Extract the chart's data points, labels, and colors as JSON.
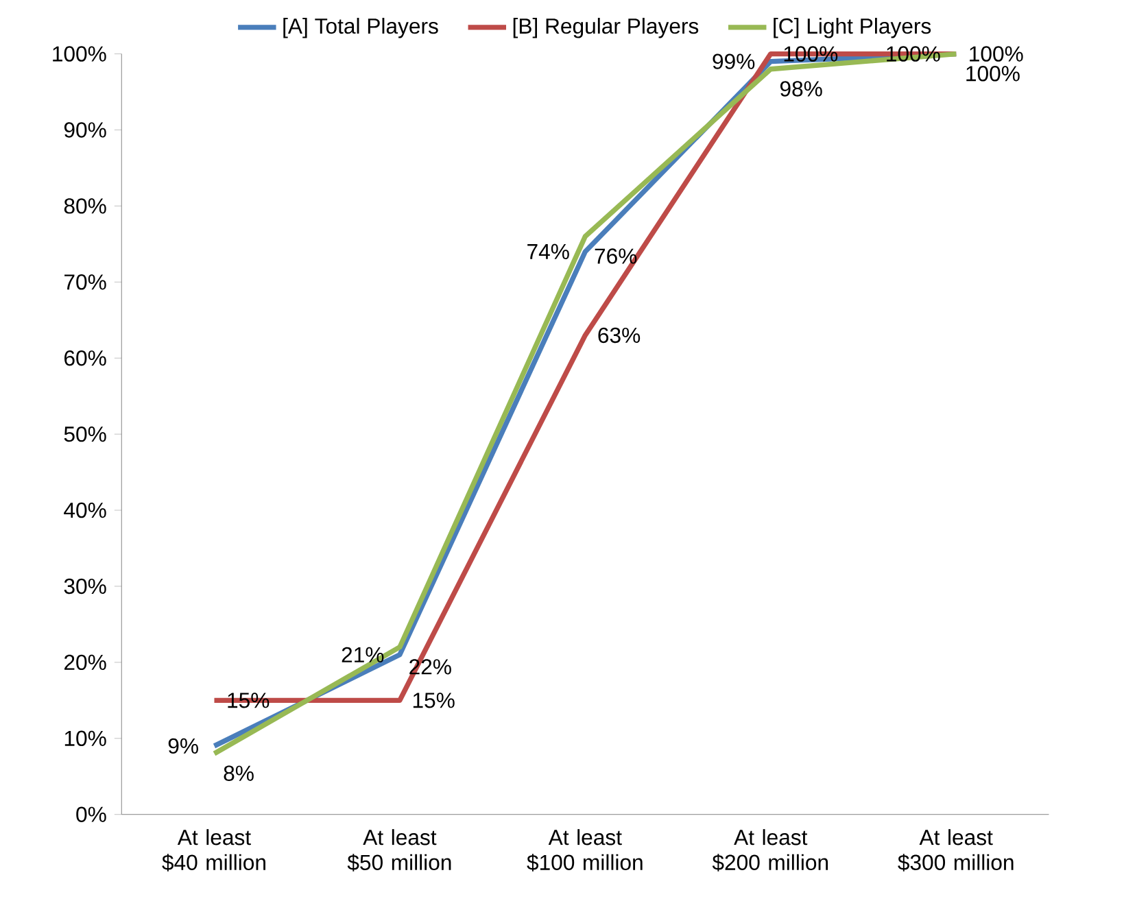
{
  "chart_data": {
    "type": "line",
    "categories": [
      "At least $40 million",
      "At least $50 million",
      "At least $100 million",
      "At least $200 million",
      "At least $300 million"
    ],
    "series": [
      {
        "name": "[A] Total Players",
        "color": "#4a7ebb",
        "values": [
          9,
          21,
          74,
          99,
          100
        ],
        "value_labels": [
          "9%",
          "21%",
          "74%",
          "99%",
          "100%"
        ]
      },
      {
        "name": "[B] Regular Players",
        "color": "#be4b48",
        "values": [
          15,
          15,
          63,
          100,
          100
        ],
        "value_labels": [
          "15%",
          "15%",
          "63%",
          "100%",
          "100%"
        ]
      },
      {
        "name": "[C] Light Players",
        "color": "#98b954",
        "values": [
          8,
          22,
          76,
          98,
          100
        ],
        "value_labels": [
          "8%",
          "22%",
          "76%",
          "98%",
          "100%"
        ]
      }
    ],
    "ylim": [
      0,
      100
    ],
    "yticks": [
      {
        "value": 0,
        "label": "0%"
      },
      {
        "value": 10,
        "label": "10%"
      },
      {
        "value": 20,
        "label": "20%"
      },
      {
        "value": 30,
        "label": "30%"
      },
      {
        "value": 40,
        "label": "40%"
      },
      {
        "value": 50,
        "label": "50%"
      },
      {
        "value": 60,
        "label": "60%"
      },
      {
        "value": 70,
        "label": "70%"
      },
      {
        "value": 80,
        "label": "80%"
      },
      {
        "value": 90,
        "label": "90%"
      },
      {
        "value": 100,
        "label": "100%"
      }
    ],
    "grid": false,
    "legend": "top",
    "marker": "none",
    "line_style": "solid"
  }
}
